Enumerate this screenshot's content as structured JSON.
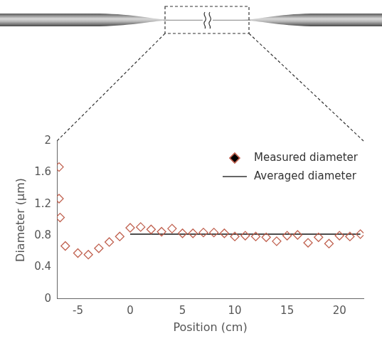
{
  "chart_data": {
    "type": "scatter",
    "x_label": "Position (cm)",
    "y_label": "Diameter (µm)",
    "xlim": [
      -7,
      22.3
    ],
    "xticks": [
      -5,
      0,
      5,
      10,
      15,
      20
    ],
    "ylim": [
      0,
      2
    ],
    "yticks": [
      0,
      0.4,
      0.8,
      1.2,
      1.6,
      2
    ],
    "grid": false,
    "legend": "upper right",
    "series": [
      {
        "name": "Measured diameter",
        "type": "scatter",
        "marker": "diamond",
        "color": "#c0614f",
        "x": [
          -6.8,
          -6.8,
          -6.7,
          -6.2,
          -5,
          -4,
          -3,
          -2,
          -1,
          0,
          1,
          2,
          3,
          4,
          5,
          6,
          7,
          8,
          9,
          10,
          11,
          12,
          13,
          14,
          15,
          16,
          17,
          18,
          19,
          20,
          21,
          22
        ],
        "values": [
          1.67,
          1.27,
          1.03,
          0.67,
          0.58,
          0.56,
          0.64,
          0.72,
          0.79,
          0.9,
          0.91,
          0.88,
          0.85,
          0.89,
          0.83,
          0.83,
          0.84,
          0.84,
          0.83,
          0.79,
          0.8,
          0.79,
          0.78,
          0.73,
          0.8,
          0.81,
          0.71,
          0.78,
          0.7,
          0.8,
          0.79,
          0.82
        ]
      },
      {
        "name": "Averaged diameter",
        "type": "line",
        "line_style": "solid",
        "color": "#333333",
        "x": [
          0,
          22
        ],
        "values": [
          0.82,
          0.82
        ]
      }
    ]
  }
}
